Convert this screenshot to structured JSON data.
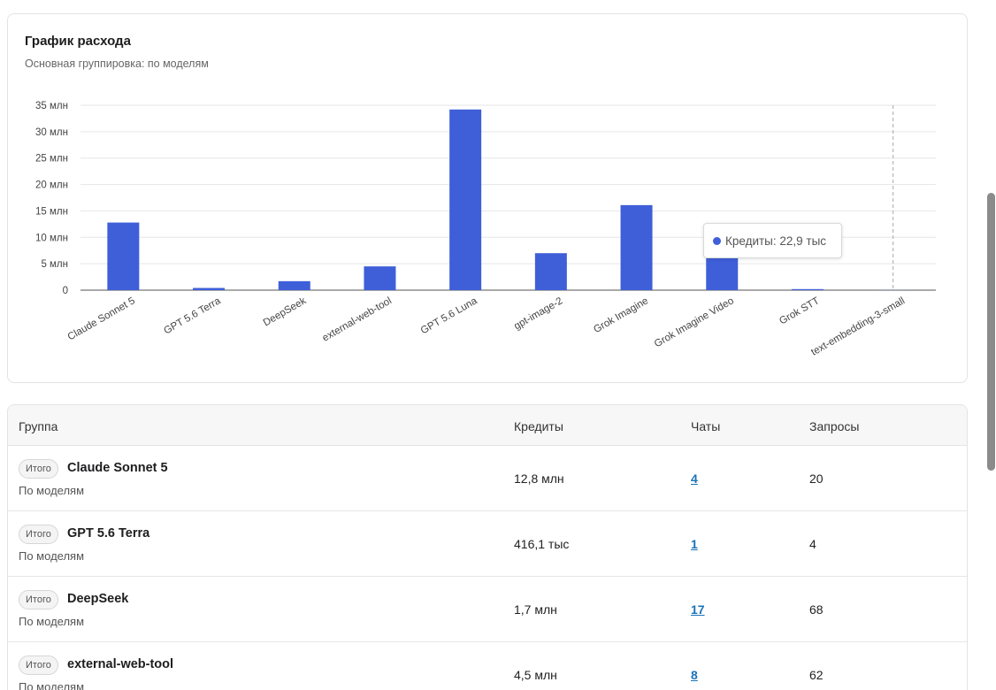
{
  "card": {
    "title": "График расхода",
    "subtitle": "Основная группировка: по моделям"
  },
  "chart_data": {
    "type": "bar",
    "title": "График расхода",
    "categories": [
      "Claude Sonnet 5",
      "GPT 5.6 Terra",
      "DeepSeek",
      "external-web-tool",
      "GPT 5.6 Luna",
      "gpt-image-2",
      "Grok Imagine",
      "Grok Imagine Video",
      "Grok STT",
      "text-embedding-3-small"
    ],
    "values": [
      12.8,
      0.4161,
      1.7,
      4.5,
      34.2,
      7.0,
      16.1,
      9.3,
      0.2,
      0.0229
    ],
    "y_ticks": [
      "0",
      "5 млн",
      "10 млн",
      "15 млн",
      "20 млн",
      "25 млн",
      "30 млн",
      "35 млн"
    ],
    "ylim": [
      0,
      35
    ],
    "grid": true,
    "bar_color": "#3f5fd9",
    "hover_category": "text-embedding-3-small"
  },
  "tooltip": {
    "text": "Кредиты: 22,9 тыс",
    "color": "#3f5fd9"
  },
  "table": {
    "headers": {
      "group": "Группа",
      "credits": "Кредиты",
      "chats": "Чаты",
      "requests": "Запросы"
    },
    "rows": [
      {
        "badge": "Итого",
        "name": "Claude Sonnet 5",
        "group": "По моделям",
        "credits": "12,8 млн",
        "chats": "4",
        "requests": "20"
      },
      {
        "badge": "Итого",
        "name": "GPT 5.6 Terra",
        "group": "По моделям",
        "credits": "416,1 тыс",
        "chats": "1",
        "requests": "4"
      },
      {
        "badge": "Итого",
        "name": "DeepSeek",
        "group": "По моделям",
        "credits": "1,7 млн",
        "chats": "17",
        "requests": "68"
      },
      {
        "badge": "Итого",
        "name": "external-web-tool",
        "group": "По моделям",
        "credits": "4,5 млн",
        "chats": "8",
        "requests": "62"
      }
    ]
  }
}
